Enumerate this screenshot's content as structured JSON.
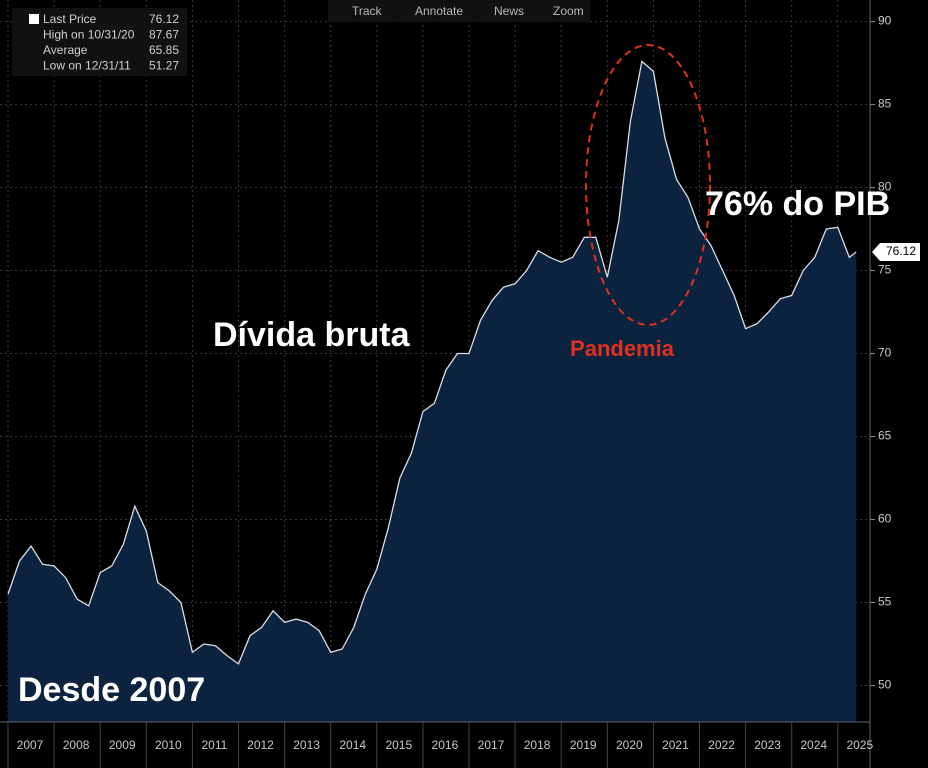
{
  "toolbar": [
    "Track",
    "Annotate",
    "News",
    "Zoom"
  ],
  "chart_data": {
    "type": "line",
    "legend_box": [
      {
        "label": "Last Price",
        "value": 76.12
      },
      {
        "label": "High on 10/31/20",
        "value": 87.67
      },
      {
        "label": "Average",
        "value": 65.85
      },
      {
        "label": "Low on 12/31/11",
        "value": 51.27
      }
    ],
    "annotations": [
      "Dívida bruta",
      "Pandemia",
      "76% do PIB",
      "Desde 2007"
    ],
    "x": [
      2007.0,
      2007.25,
      2007.5,
      2007.75,
      2008.0,
      2008.25,
      2008.5,
      2008.75,
      2009.0,
      2009.25,
      2009.5,
      2009.75,
      2010.0,
      2010.25,
      2010.5,
      2010.75,
      2011.0,
      2011.25,
      2011.5,
      2011.75,
      2012.0,
      2012.25,
      2012.5,
      2012.75,
      2013.0,
      2013.25,
      2013.5,
      2013.75,
      2014.0,
      2014.25,
      2014.5,
      2014.75,
      2015.0,
      2015.25,
      2015.5,
      2015.75,
      2016.0,
      2016.25,
      2016.5,
      2016.75,
      2017.0,
      2017.25,
      2017.5,
      2017.75,
      2018.0,
      2018.25,
      2018.5,
      2018.75,
      2019.0,
      2019.25,
      2019.5,
      2019.75,
      2020.0,
      2020.25,
      2020.5,
      2020.75,
      2021.0,
      2021.25,
      2021.5,
      2021.75,
      2022.0,
      2022.25,
      2022.5,
      2022.75,
      2023.0,
      2023.25,
      2023.5,
      2023.75,
      2024.0,
      2024.25,
      2024.5,
      2024.75,
      2025.0,
      2025.25,
      2025.4
    ],
    "series": [
      {
        "name": "Last Price",
        "color": "#d8dee6",
        "fill": "#0c2340",
        "values": [
          55.5,
          57.5,
          58.4,
          57.3,
          57.2,
          56.5,
          55.2,
          54.8,
          56.8,
          57.2,
          58.5,
          60.8,
          59.3,
          56.2,
          55.7,
          55.0,
          52.0,
          52.5,
          52.4,
          51.8,
          51.3,
          53.0,
          53.5,
          54.5,
          53.8,
          54.0,
          53.8,
          53.3,
          52.0,
          52.2,
          53.5,
          55.5,
          57.0,
          59.5,
          62.5,
          64.0,
          66.5,
          67.0,
          69.0,
          70.0,
          70.0,
          72.0,
          73.2,
          74.0,
          74.2,
          75.0,
          76.2,
          75.8,
          75.5,
          75.8,
          77.0,
          77.0,
          74.6,
          78.0,
          84.0,
          87.6,
          87.0,
          83.0,
          80.5,
          79.4,
          77.5,
          76.5,
          75.0,
          73.5,
          71.5,
          71.8,
          72.5,
          73.3,
          73.5,
          75.0,
          75.8,
          77.5,
          77.6,
          75.8,
          76.12
        ]
      }
    ],
    "xlim": [
      2007,
      2025.5
    ],
    "xticks": [
      {
        "value": 2007,
        "label": "2007"
      },
      {
        "value": 2008,
        "label": "2008"
      },
      {
        "value": 2009,
        "label": "2009"
      },
      {
        "value": 2010,
        "label": "2010"
      },
      {
        "value": 2011,
        "label": "2011"
      },
      {
        "value": 2012,
        "label": "2012"
      },
      {
        "value": 2013,
        "label": "2013"
      },
      {
        "value": 2014,
        "label": "2014"
      },
      {
        "value": 2015,
        "label": "2015"
      },
      {
        "value": 2016,
        "label": "2016"
      },
      {
        "value": 2017,
        "label": "2017"
      },
      {
        "value": 2018,
        "label": "2018"
      },
      {
        "value": 2019,
        "label": "2019"
      },
      {
        "value": 2020,
        "label": "2020"
      },
      {
        "value": 2021,
        "label": "2021"
      },
      {
        "value": 2022,
        "label": "2022"
      },
      {
        "value": 2023,
        "label": "2023"
      },
      {
        "value": 2024,
        "label": "2024"
      },
      {
        "value": 2025,
        "label": "2025"
      }
    ],
    "ylim": [
      47.8,
      91.3
    ],
    "yticks": [
      50,
      55,
      60,
      65,
      70,
      75,
      80,
      85,
      90
    ],
    "grid": true
  }
}
